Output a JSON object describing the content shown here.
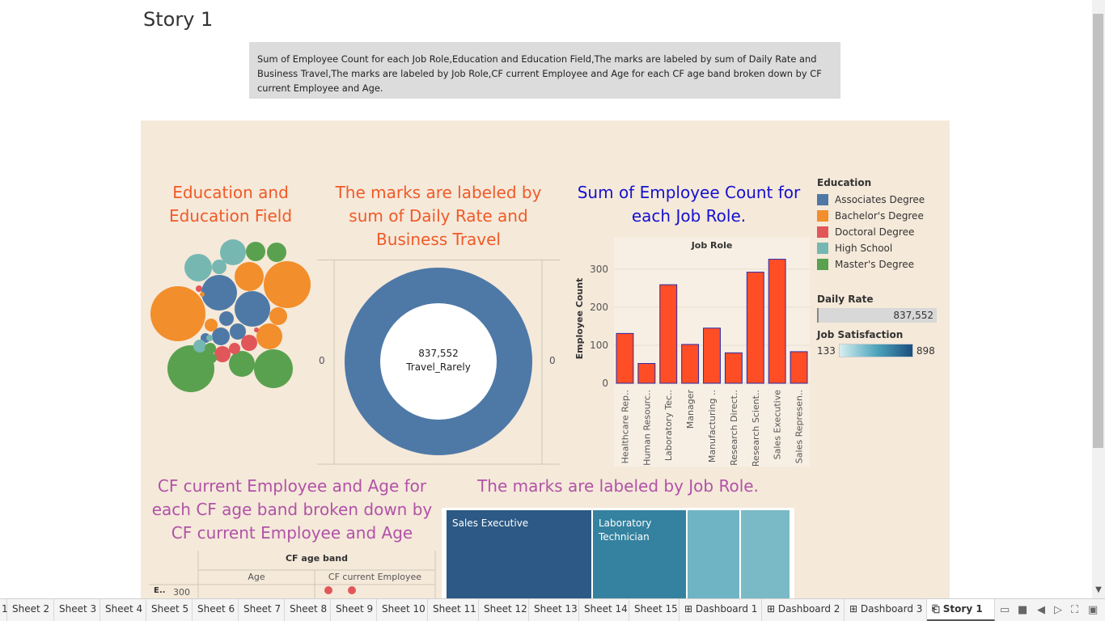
{
  "story": {
    "title": "Story 1",
    "caption": "Sum of Employee Count for each Job Role,Education and Education Field,The marks are labeled by sum of Daily Rate and Business Travel,The marks are labeled by Job Role,CF current Employee and Age for each CF age band broken down by CF current Employee and Age."
  },
  "charts": {
    "bubble": {
      "title": "Education and Education Field"
    },
    "donut": {
      "title": "The marks are labeled by sum of Daily Rate and Business Travel",
      "center_value": "837,552",
      "center_label": "Travel_Rarely",
      "left_tick": "0",
      "right_tick": "0"
    },
    "bar": {
      "title": "Sum of Employee Count for each Job Role."
    },
    "scatter": {
      "title": "CF current Employee and Age for each CF age band broken down by CF current Employee and Age",
      "header": "CF age band",
      "col1": "Age",
      "col2": "CF current Employee",
      "y_tick": "300",
      "y_trunc": "E.."
    },
    "treemap": {
      "title": "The marks are labeled by Job Role.",
      "cell1": "Sales Executive",
      "cell2": "Laboratory Technician"
    }
  },
  "chart_data": [
    {
      "type": "bar",
      "title": "Job Role",
      "xlabel": "",
      "ylabel": "Employee Count",
      "categories": [
        "Healthcare Rep..",
        "Human Resourc..",
        "Laboratory Tec..",
        "Manager",
        "Manufacturing ..",
        "Research Direct..",
        "Research Scient..",
        "Sales Executive",
        "Sales Represen.."
      ],
      "values": [
        131,
        52,
        259,
        102,
        145,
        80,
        292,
        326,
        83
      ],
      "ylim": [
        0,
        340
      ],
      "yticks": [
        0,
        100,
        200,
        300
      ],
      "bar_color": "#ff4e25",
      "bar_edge": "#2a2aa8"
    },
    {
      "type": "pie",
      "title": "",
      "slices": [
        {
          "label": "Travel_Rarely",
          "value": 837552
        }
      ],
      "color": "#4e79a7"
    }
  ],
  "legend": {
    "education_title": "Education",
    "education": [
      {
        "label": "Associates Degree",
        "color": "#4e79a7"
      },
      {
        "label": "Bachelor's Degree",
        "color": "#f28e2b"
      },
      {
        "label": "Doctoral Degree",
        "color": "#e15759"
      },
      {
        "label": "High School",
        "color": "#76b7b2"
      },
      {
        "label": "Master's Degree",
        "color": "#59a14f"
      }
    ],
    "daily_rate_title": "Daily Rate",
    "daily_rate_value": "837,552",
    "job_sat_title": "Job Satisfaction",
    "job_sat_min": "133",
    "job_sat_max": "898"
  },
  "tabs": [
    {
      "label": "1"
    },
    {
      "label": "Sheet 2"
    },
    {
      "label": "Sheet 3"
    },
    {
      "label": "Sheet 4"
    },
    {
      "label": "Sheet 5"
    },
    {
      "label": "Sheet 6"
    },
    {
      "label": "Sheet 7"
    },
    {
      "label": "Sheet 8"
    },
    {
      "label": "Sheet 9"
    },
    {
      "label": "Sheet 10"
    },
    {
      "label": "Sheet 11"
    },
    {
      "label": "Sheet 12"
    },
    {
      "label": "Sheet 13"
    },
    {
      "label": "Sheet 14"
    },
    {
      "label": "Sheet 15"
    },
    {
      "label": "Dashboard 1",
      "icon": "dashboard-icon"
    },
    {
      "label": "Dashboard 2",
      "icon": "dashboard-icon"
    },
    {
      "label": "Dashboard 3",
      "icon": "dashboard-icon"
    },
    {
      "label": "Story 1",
      "icon": "story-icon",
      "active": true
    }
  ]
}
